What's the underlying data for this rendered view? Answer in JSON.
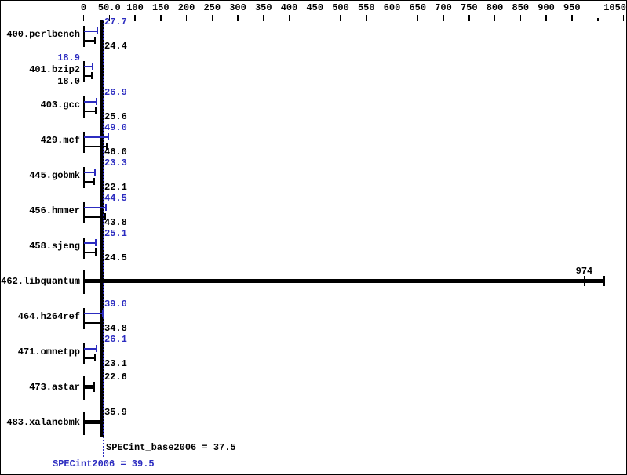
{
  "chart_data": {
    "type": "bar",
    "orientation": "horizontal",
    "title": "",
    "xlabel": "",
    "ylabel": "",
    "xlim": [
      0,
      1060
    ],
    "grid": false,
    "legend": false,
    "axis_ticks": [
      {
        "value": 0,
        "label": "0"
      },
      {
        "value": 50,
        "label": "50.0"
      },
      {
        "value": 100,
        "label": "100"
      },
      {
        "value": 150,
        "label": "150"
      },
      {
        "value": 200,
        "label": "200"
      },
      {
        "value": 250,
        "label": "250"
      },
      {
        "value": 300,
        "label": "300"
      },
      {
        "value": 350,
        "label": "350"
      },
      {
        "value": 400,
        "label": "400"
      },
      {
        "value": 450,
        "label": "450"
      },
      {
        "value": 500,
        "label": "500"
      },
      {
        "value": 550,
        "label": "550"
      },
      {
        "value": 600,
        "label": "600"
      },
      {
        "value": 650,
        "label": "650"
      },
      {
        "value": 700,
        "label": "700"
      },
      {
        "value": 750,
        "label": "750"
      },
      {
        "value": 800,
        "label": "800"
      },
      {
        "value": 850,
        "label": "850"
      },
      {
        "value": 900,
        "label": "900"
      },
      {
        "value": 950,
        "label": "950"
      },
      {
        "value": 1000,
        "label": "",
        "minor": true
      },
      {
        "value": 1050,
        "label": "1050",
        "align_right": true
      }
    ],
    "benchmarks": [
      {
        "name": "400.perlbench",
        "peak": 27.7,
        "peak_label": "27.7",
        "base": 24.4,
        "base_label": "24.4"
      },
      {
        "name": "401.bzip2",
        "peak": 18.9,
        "peak_label": "18.9",
        "base": 18.0,
        "base_label": "18.0",
        "labels_left": true
      },
      {
        "name": "403.gcc",
        "peak": 26.9,
        "peak_label": "26.9",
        "base": 25.6,
        "base_label": "25.6"
      },
      {
        "name": "429.mcf",
        "peak": 49.0,
        "peak_label": "49.0",
        "base": 46.0,
        "base_label": "46.0"
      },
      {
        "name": "445.gobmk",
        "peak": 23.3,
        "peak_label": "23.3",
        "base": 22.1,
        "base_label": "22.1"
      },
      {
        "name": "456.hmmer",
        "peak": 44.5,
        "peak_label": "44.5",
        "base": 43.8,
        "base_label": "43.8"
      },
      {
        "name": "458.sjeng",
        "peak": 25.1,
        "peak_label": "25.1",
        "base": 24.5,
        "base_label": "24.5"
      },
      {
        "name": "462.libquantum",
        "single": 974,
        "single_label": "974",
        "bar_max": 1015,
        "label_at_value": true
      },
      {
        "name": "464.h264ref",
        "peak": 39.0,
        "peak_label": "39.0",
        "base": 34.8,
        "base_label": "34.8"
      },
      {
        "name": "471.omnetpp",
        "peak": 26.1,
        "peak_label": "26.1",
        "base": 23.1,
        "base_label": "23.1"
      },
      {
        "name": "473.astar",
        "single": 22.6,
        "single_label": "22.6"
      },
      {
        "name": "483.xalancbmk",
        "single": 35.9,
        "single_label": "35.9"
      }
    ],
    "reference_lines": {
      "base_mean": 37.5,
      "peak_mean": 39.5
    },
    "summary": {
      "base_text": "SPECint_base2006 = 37.5",
      "peak_text": "SPECint2006 = 39.5"
    },
    "colors": {
      "peak": "#2c2cc0",
      "base": "#000000"
    }
  }
}
